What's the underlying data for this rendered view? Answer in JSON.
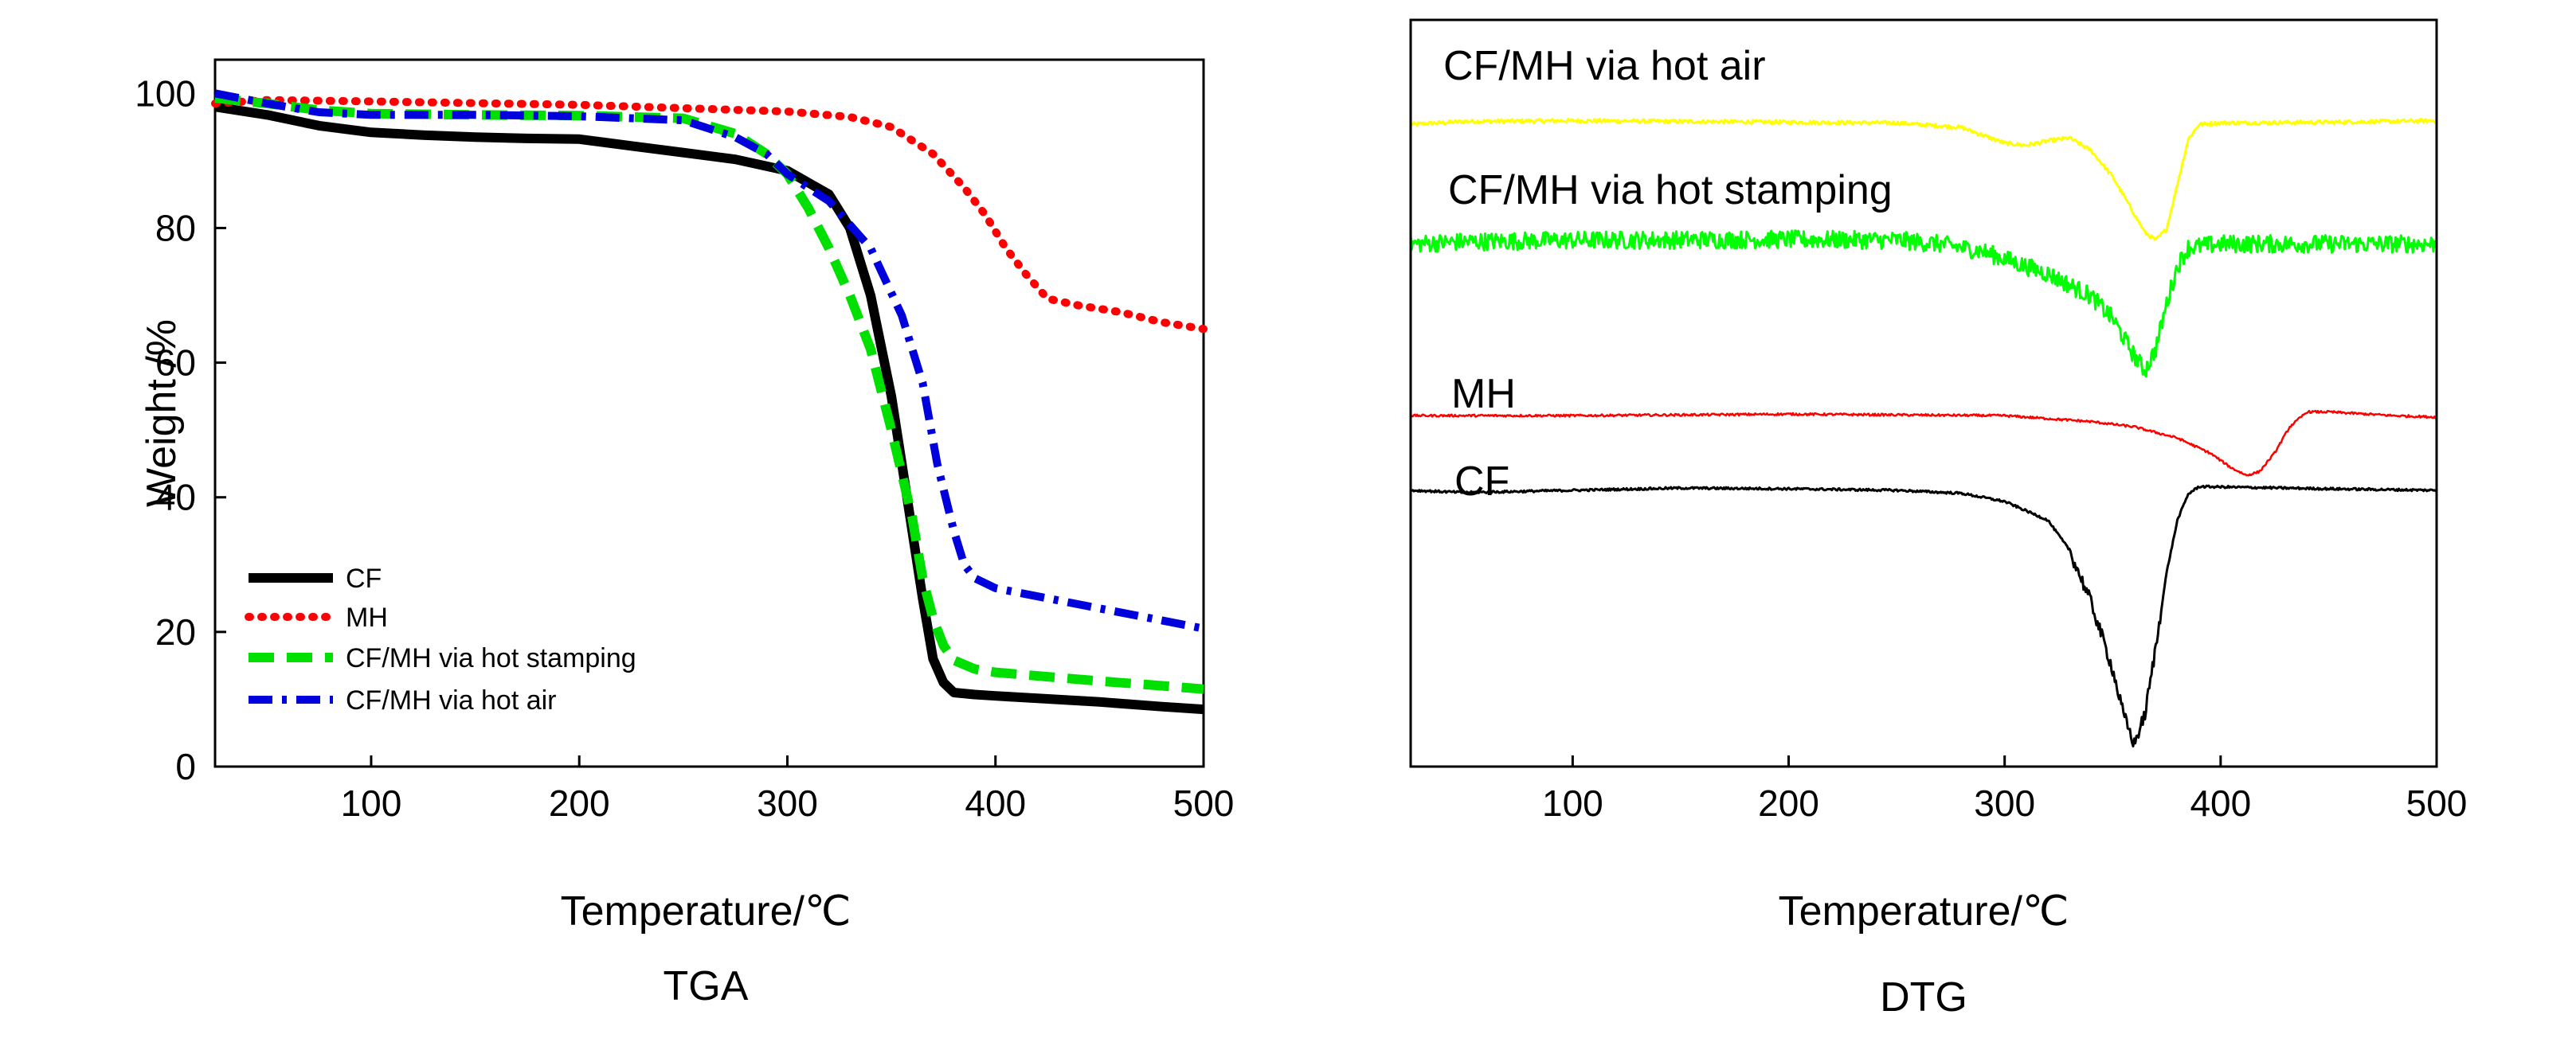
{
  "chart_data": [
    {
      "type": "line",
      "caption": "TGA",
      "title": "",
      "xlabel": "Temperature/℃",
      "ylabel": "Weight /%",
      "xlim": [
        25,
        500
      ],
      "ylim": [
        0,
        105
      ],
      "x_ticks": [
        100,
        200,
        300,
        400,
        500
      ],
      "y_ticks": [
        0,
        20,
        40,
        60,
        80,
        100
      ],
      "grid": false,
      "legend_position": "bottom-left",
      "series": [
        {
          "name": "CF",
          "color": "#000000",
          "style": "solid",
          "points": [
            [
              25,
              98
            ],
            [
              50,
              96.8
            ],
            [
              75,
              95.2
            ],
            [
              100,
              94.2
            ],
            [
              125,
              93.8
            ],
            [
              150,
              93.5
            ],
            [
              175,
              93.3
            ],
            [
              200,
              93.2
            ],
            [
              225,
              92.2
            ],
            [
              250,
              91.2
            ],
            [
              275,
              90.2
            ],
            [
              300,
              88.5
            ],
            [
              320,
              85
            ],
            [
              330,
              80
            ],
            [
              340,
              70
            ],
            [
              350,
              55
            ],
            [
              355,
              45
            ],
            [
              360,
              35
            ],
            [
              365,
              25
            ],
            [
              370,
              16
            ],
            [
              375,
              12.5
            ],
            [
              380,
              11
            ],
            [
              390,
              10.7
            ],
            [
              400,
              10.5
            ],
            [
              450,
              9.6
            ],
            [
              480,
              8.9
            ],
            [
              500,
              8.5
            ]
          ]
        },
        {
          "name": "MH",
          "color": "#ff0000",
          "style": "dotted",
          "points": [
            [
              25,
              98.5
            ],
            [
              50,
              99
            ],
            [
              100,
              98.8
            ],
            [
              200,
              98.3
            ],
            [
              250,
              97.8
            ],
            [
              300,
              97.3
            ],
            [
              330,
              96.5
            ],
            [
              350,
              95
            ],
            [
              370,
              91
            ],
            [
              385,
              86
            ],
            [
              395,
              82
            ],
            [
              405,
              77
            ],
            [
              415,
              73
            ],
            [
              425,
              69.5
            ],
            [
              440,
              68.5
            ],
            [
              460,
              67.5
            ],
            [
              480,
              66
            ],
            [
              500,
              65
            ]
          ]
        },
        {
          "name": "CF/MH via hot stamping",
          "color": "#00e000",
          "style": "dashed",
          "points": [
            [
              25,
              99.3
            ],
            [
              50,
              98.5
            ],
            [
              75,
              97.5
            ],
            [
              100,
              97
            ],
            [
              150,
              96.8
            ],
            [
              200,
              96.7
            ],
            [
              250,
              96.3
            ],
            [
              275,
              94
            ],
            [
              290,
              91
            ],
            [
              300,
              88
            ],
            [
              310,
              83
            ],
            [
              320,
              77
            ],
            [
              330,
              70
            ],
            [
              340,
              62
            ],
            [
              350,
              50
            ],
            [
              360,
              37
            ],
            [
              365,
              28
            ],
            [
              370,
              22
            ],
            [
              375,
              18
            ],
            [
              380,
              15.8
            ],
            [
              390,
              14.5
            ],
            [
              400,
              14
            ],
            [
              450,
              12.7
            ],
            [
              480,
              12
            ],
            [
              500,
              11.5
            ]
          ]
        },
        {
          "name": "CF/MH via hot air",
          "color": "#0000dd",
          "style": "dashdot",
          "points": [
            [
              25,
              100
            ],
            [
              50,
              98.5
            ],
            [
              75,
              97.2
            ],
            [
              100,
              96.8
            ],
            [
              150,
              96.8
            ],
            [
              200,
              96.6
            ],
            [
              250,
              96
            ],
            [
              275,
              93.5
            ],
            [
              290,
              91
            ],
            [
              300,
              88
            ],
            [
              320,
              84
            ],
            [
              340,
              77
            ],
            [
              355,
              67
            ],
            [
              365,
              57
            ],
            [
              372,
              45
            ],
            [
              380,
              35
            ],
            [
              385,
              30
            ],
            [
              390,
              28
            ],
            [
              400,
              26.5
            ],
            [
              425,
              25
            ],
            [
              450,
              23.5
            ],
            [
              475,
              22
            ],
            [
              500,
              20.5
            ]
          ]
        }
      ]
    },
    {
      "type": "line",
      "caption": "DTG",
      "title": "",
      "xlabel": "Temperature/℃",
      "ylabel": "",
      "xlim": [
        25,
        500
      ],
      "ylim": [
        0,
        100
      ],
      "x_ticks": [
        100,
        200,
        300,
        400,
        500
      ],
      "y_ticks": [],
      "y_scale": "arbitrary offset units (no y tick labels shown)",
      "grid": false,
      "legend_position": "inline labels above each curve",
      "series": [
        {
          "name": "CF/MH via hot air",
          "color": "#ffff00",
          "noise": 0.25,
          "points": [
            [
              25,
              86
            ],
            [
              50,
              86.4
            ],
            [
              100,
              86.5
            ],
            [
              200,
              86.3
            ],
            [
              250,
              86.2
            ],
            [
              280,
              85.6
            ],
            [
              300,
              83.5
            ],
            [
              310,
              83.2
            ],
            [
              320,
              83.8
            ],
            [
              330,
              84.2
            ],
            [
              340,
              82.5
            ],
            [
              350,
              79
            ],
            [
              360,
              74
            ],
            [
              365,
              71.5
            ],
            [
              370,
              70.5
            ],
            [
              375,
              72
            ],
            [
              380,
              78
            ],
            [
              385,
              84
            ],
            [
              390,
              86
            ],
            [
              400,
              86.2
            ],
            [
              450,
              86.3
            ],
            [
              500,
              86.5
            ]
          ]
        },
        {
          "name": "CF/MH via hot stamping",
          "color": "#00ff00",
          "noise": 1.2,
          "points": [
            [
              25,
              70
            ],
            [
              50,
              70.3
            ],
            [
              100,
              70.5
            ],
            [
              200,
              70.6
            ],
            [
              250,
              70.5
            ],
            [
              270,
              70
            ],
            [
              290,
              69
            ],
            [
              300,
              68
            ],
            [
              320,
              66
            ],
            [
              340,
              63
            ],
            [
              350,
              60
            ],
            [
              360,
              55
            ],
            [
              365,
              53
            ],
            [
              370,
              56
            ],
            [
              375,
              62
            ],
            [
              380,
              67
            ],
            [
              385,
              69.5
            ],
            [
              400,
              70
            ],
            [
              450,
              70
            ],
            [
              500,
              70
            ]
          ]
        },
        {
          "name": "MH",
          "color": "#ff0000",
          "noise": 0.15,
          "points": [
            [
              25,
              47
            ],
            [
              50,
              47
            ],
            [
              100,
              47
            ],
            [
              200,
              47.2
            ],
            [
              250,
              47.1
            ],
            [
              300,
              47
            ],
            [
              320,
              46.6
            ],
            [
              340,
              46.2
            ],
            [
              360,
              45.5
            ],
            [
              380,
              44
            ],
            [
              395,
              42
            ],
            [
              405,
              40
            ],
            [
              412,
              39
            ],
            [
              418,
              39.5
            ],
            [
              425,
              42
            ],
            [
              432,
              45.5
            ],
            [
              440,
              47.5
            ],
            [
              450,
              47.5
            ],
            [
              480,
              47
            ],
            [
              500,
              46.8
            ]
          ]
        },
        {
          "name": "CF",
          "color": "#000000",
          "noise": 0.15,
          "points": [
            [
              25,
              37
            ],
            [
              50,
              36.7
            ],
            [
              100,
              37
            ],
            [
              150,
              37.3
            ],
            [
              200,
              37.2
            ],
            [
              250,
              37
            ],
            [
              280,
              36.6
            ],
            [
              300,
              35.5
            ],
            [
              320,
              33
            ],
            [
              330,
              29
            ],
            [
              340,
              22
            ],
            [
              350,
              13
            ],
            [
              355,
              7
            ],
            [
              360,
              3
            ],
            [
              365,
              7
            ],
            [
              370,
              16
            ],
            [
              375,
              26
            ],
            [
              380,
              33
            ],
            [
              385,
              36.5
            ],
            [
              390,
              37.5
            ],
            [
              450,
              37.2
            ],
            [
              500,
              37
            ]
          ],
          "noise_boost_range": [
            330,
            372
          ]
        }
      ],
      "labels": [
        "CF/MH via hot air",
        "CF/MH via hot stamping",
        "MH",
        "CF"
      ]
    }
  ]
}
